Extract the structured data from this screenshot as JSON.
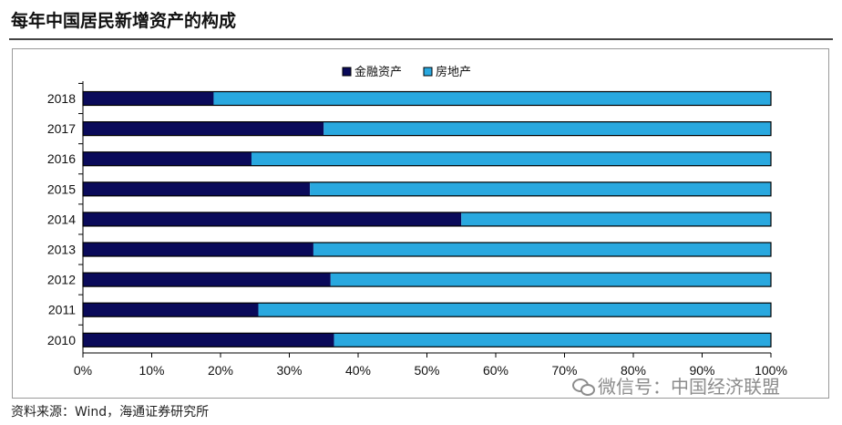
{
  "title": "每年中国居民新增资产的构成",
  "source": "资料来源：Wind，海通证券研究所",
  "watermark": "微信号：中国经济联盟",
  "chart_data": {
    "type": "bar",
    "orientation": "horizontal",
    "stacked": "percent",
    "categories": [
      "2018",
      "2017",
      "2016",
      "2015",
      "2014",
      "2013",
      "2012",
      "2011",
      "2010"
    ],
    "series": [
      {
        "name": "金融资产",
        "color": "#0a0a5a",
        "values": [
          19,
          35,
          24.5,
          33,
          55,
          33.5,
          36,
          25.5,
          36.5
        ]
      },
      {
        "name": "房地产",
        "color": "#29a8df",
        "values": [
          81,
          65,
          75.5,
          67,
          45,
          66.5,
          64,
          74.5,
          63.5
        ]
      }
    ],
    "x_ticks": [
      "0%",
      "10%",
      "20%",
      "30%",
      "40%",
      "50%",
      "60%",
      "70%",
      "80%",
      "90%",
      "100%"
    ],
    "xlim": [
      0,
      100
    ],
    "grid": false,
    "legend_position": "top-center"
  }
}
